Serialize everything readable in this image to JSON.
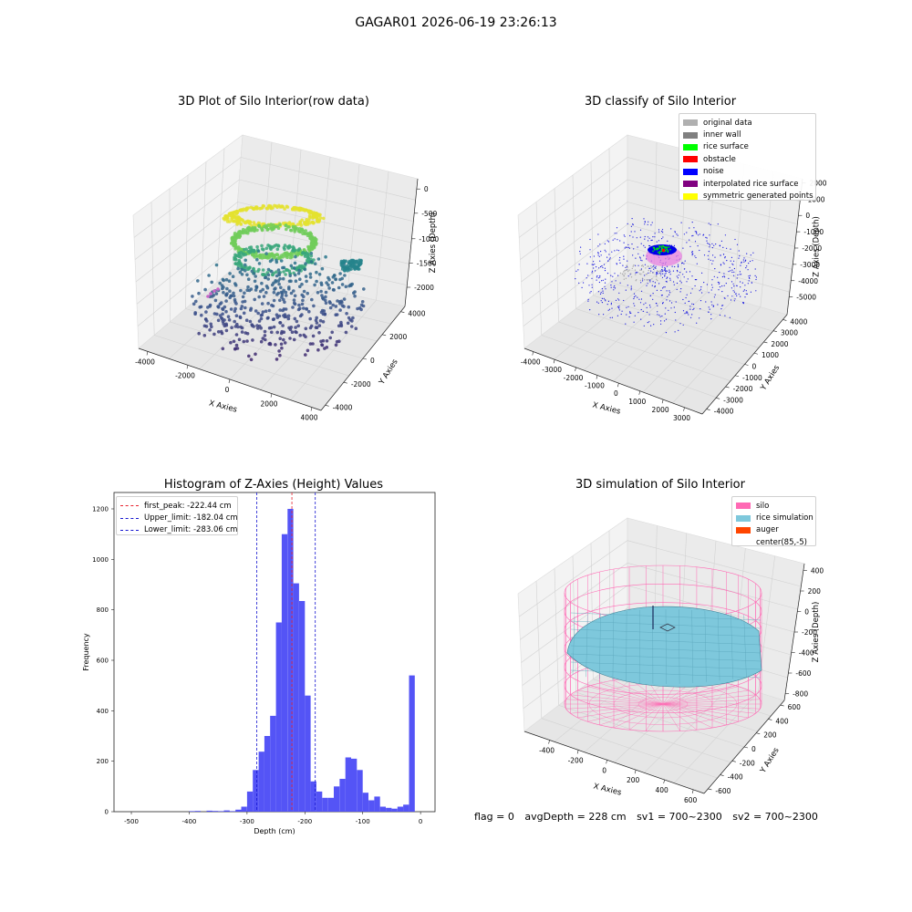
{
  "figure_title": "GAGAR01 2026-06-19 23:26:13",
  "status": {
    "flag": "flag = 0",
    "avg_depth": "avgDepth = 228 cm",
    "sv1": "sv1 = 700~2300",
    "sv2": "sv2 = 700~2300"
  },
  "colors": {
    "hist_bar": "#4b4bf5",
    "peak_line": "#e8222e",
    "limit_line": "#1515d0",
    "silo": "#ff69b4",
    "rice": "#7ec8dc",
    "auger": "#ff4500"
  },
  "chart_data": [
    {
      "type": "scatter",
      "title": "3D Plot of Silo Interior(row data)",
      "xlabel": "X Axies",
      "ylabel": "Y Axies",
      "zlabel": "Z Axies (Depth)",
      "x_ticks": [
        "-4000",
        "-2000",
        "0",
        "2000",
        "4000"
      ],
      "y_ticks": [
        "-4000",
        "-2000",
        "0",
        "2000",
        "4000"
      ],
      "z_ticks": [
        "0",
        "-500",
        "-1000",
        "-1500",
        "-2000"
      ],
      "xlim": [
        -4500,
        4500
      ],
      "ylim": [
        -4500,
        4500
      ],
      "zlim": [
        -2300,
        0
      ],
      "colormap": "viridis",
      "series": [
        {
          "points": [
            [
              0,
              0,
              -150
            ],
            [
              600,
              200,
              -450
            ],
            [
              -600,
              -200,
              -900
            ],
            [
              1200,
              600,
              -1100
            ],
            [
              -1800,
              -600,
              -1400
            ],
            [
              2400,
              -400,
              -1700
            ],
            [
              -3000,
              800,
              -1900
            ],
            [
              3600,
              1000,
              -2100
            ]
          ]
        }
      ]
    },
    {
      "type": "scatter",
      "title": "3D classify of Silo Interior",
      "xlabel": "X Axies",
      "ylabel": "Y Axies",
      "zlabel": "Z Axies (Depth)",
      "x_ticks": [
        "-4000",
        "-3000",
        "-2000",
        "-1000",
        "0",
        "1000",
        "2000",
        "3000",
        "4000"
      ],
      "y_ticks": [
        "-4000",
        "-3000",
        "-2000",
        "-1000",
        "0",
        "1000",
        "2000",
        "3000",
        "4000"
      ],
      "z_ticks": [
        "2000",
        "1000",
        "0",
        "-1000",
        "-2000",
        "-3000",
        "-4000",
        "-5000"
      ],
      "xlim": [
        -4000,
        4000
      ],
      "ylim": [
        -4000,
        4000
      ],
      "zlim": [
        -5000,
        2000
      ],
      "legend": [
        {
          "label": "original data",
          "color": "#b0b0b0"
        },
        {
          "label": "inner wall",
          "color": "#808080"
        },
        {
          "label": "rice surface",
          "color": "#00ff00"
        },
        {
          "label": "obstacle",
          "color": "#ff0000"
        },
        {
          "label": "noise",
          "color": "#0000ff"
        },
        {
          "label": "interpolated rice surface",
          "color": "#800080"
        },
        {
          "label": "symmetric generated points",
          "color": "#ffff00"
        }
      ],
      "legend_position": "upper right",
      "series": [
        {
          "name": "rice surface",
          "points": [
            [
              0,
              0,
              -300
            ],
            [
              200,
              100,
              -250
            ]
          ]
        },
        {
          "name": "noise",
          "points": [
            [
              2500,
              1000,
              -2600
            ],
            [
              -2800,
              -600,
              -2700
            ],
            [
              1500,
              -2500,
              -2200
            ]
          ]
        }
      ]
    },
    {
      "type": "bar",
      "title": "Histogram of Z-Axies (Height) Values",
      "xlabel": "Depth (cm)",
      "ylabel": "Frequency",
      "x_ticks": [
        "-500",
        "-400",
        "-300",
        "-200",
        "-100",
        "0"
      ],
      "y_ticks": [
        "0",
        "200",
        "400",
        "600",
        "800",
        "1000",
        "1200"
      ],
      "xlim": [
        -530,
        25
      ],
      "ylim": [
        0,
        1265
      ],
      "bin_width": 10,
      "bins_start": [
        -520,
        -510,
        -500,
        -490,
        -480,
        -470,
        -460,
        -450,
        -440,
        -430,
        -420,
        -410,
        -400,
        -390,
        -380,
        -370,
        -360,
        -350,
        -340,
        -330,
        -320,
        -310,
        -300,
        -290,
        -280,
        -270,
        -260,
        -250,
        -240,
        -230,
        -220,
        -210,
        -200,
        -190,
        -180,
        -170,
        -160,
        -150,
        -140,
        -130,
        -120,
        -110,
        -100,
        -90,
        -80,
        -70,
        -60,
        -50,
        -40,
        -30,
        -20,
        -10
      ],
      "values": [
        0,
        0,
        0,
        0,
        0,
        0,
        0,
        0,
        0,
        0,
        0,
        0,
        2,
        3,
        0,
        4,
        3,
        2,
        5,
        2,
        8,
        20,
        80,
        165,
        238,
        300,
        380,
        750,
        1100,
        1200,
        905,
        835,
        460,
        120,
        80,
        55,
        55,
        100,
        130,
        215,
        210,
        165,
        75,
        45,
        60,
        20,
        15,
        12,
        20,
        28,
        540,
        0
      ],
      "reference_lines": [
        {
          "label": "first_peak: -222.44 cm",
          "x": -222.44,
          "color": "#e8222e"
        },
        {
          "label": "Upper_limit: -182.04 cm",
          "x": -182.04,
          "color": "#1515d0"
        },
        {
          "label": "Lower_limit: -283.06 cm",
          "x": -283.06,
          "color": "#1515d0"
        }
      ],
      "legend_position": "upper left"
    },
    {
      "type": "surface",
      "title": "3D simulation of Silo Interior",
      "xlabel": "X Axies",
      "ylabel": "Y Axies",
      "zlabel": "Z Axies (Depth)",
      "x_ticks": [
        "-400",
        "-200",
        "0",
        "200",
        "400",
        "600"
      ],
      "y_ticks": [
        "-600",
        "-400",
        "-200",
        "0",
        "200",
        "400",
        "600"
      ],
      "z_ticks": [
        "400",
        "200",
        "0",
        "-200",
        "-400",
        "-600",
        "-800"
      ],
      "xlim": [
        -500,
        700
      ],
      "ylim": [
        -700,
        700
      ],
      "zlim": [
        -900,
        450
      ],
      "legend": [
        {
          "label": "silo",
          "color": "#ff69b4"
        },
        {
          "label": "rice simulation",
          "color": "#7ec8dc"
        },
        {
          "label": "auger",
          "color": "#ff4500"
        },
        {
          "label": "center(85,-5)",
          "color": ""
        }
      ],
      "legend_position": "upper right"
    }
  ]
}
